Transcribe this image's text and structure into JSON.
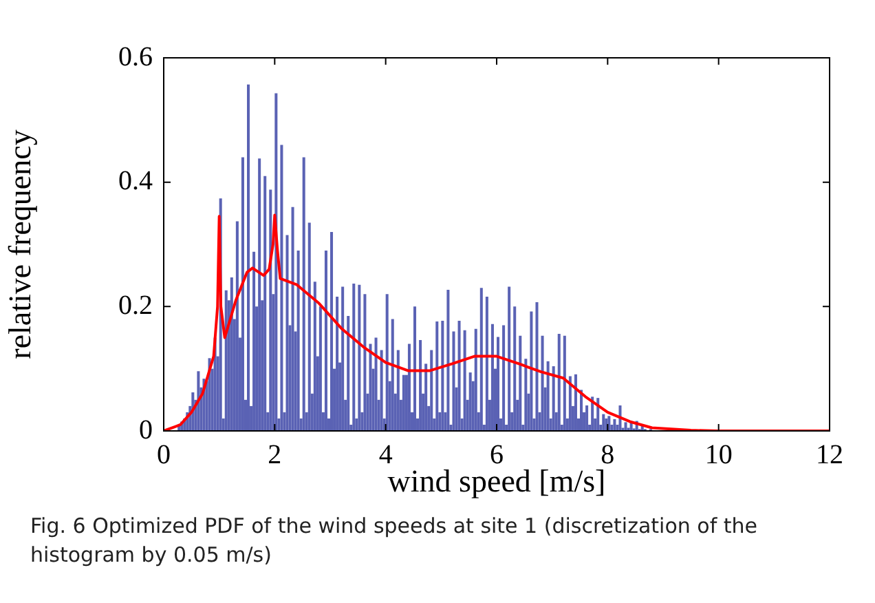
{
  "chart_data": {
    "type": "histogram",
    "xlabel": "wind speed [m/s]",
    "ylabel": "relative frequency",
    "annotations": [
      "Fig. 6  Optimized PDF of the wind speeds at site 1 (discretization of the histogram by 0.05 m/s)"
    ],
    "xlim": [
      0,
      12
    ],
    "xticks": [
      0,
      2,
      4,
      6,
      8,
      10,
      12
    ],
    "ylim": [
      0,
      0.6
    ],
    "yticks": [
      0,
      0.2,
      0.4,
      0.6
    ],
    "bins": [
      0.2,
      0.25,
      0.3,
      0.35,
      0.4,
      0.45,
      0.5,
      0.55,
      0.6,
      0.65,
      0.7,
      0.75,
      0.8,
      0.85,
      0.9,
      0.95,
      1,
      1.05,
      1.1,
      1.15,
      1.2,
      1.25,
      1.3,
      1.35,
      1.4,
      1.45,
      1.5,
      1.55,
      1.6,
      1.65,
      1.7,
      1.75,
      1.8,
      1.85,
      1.9,
      1.95,
      2,
      2.05,
      2.1,
      2.15,
      2.2,
      2.25,
      2.3,
      2.35,
      2.4,
      2.45,
      2.5,
      2.55,
      2.6,
      2.65,
      2.7,
      2.75,
      2.8,
      2.85,
      2.9,
      2.95,
      3,
      3.05,
      3.1,
      3.15,
      3.2,
      3.25,
      3.3,
      3.35,
      3.4,
      3.45,
      3.5,
      3.55,
      3.6,
      3.65,
      3.7,
      3.75,
      3.8,
      3.85,
      3.9,
      3.95,
      4,
      4.05,
      4.1,
      4.15,
      4.2,
      4.25,
      4.3,
      4.35,
      4.4,
      4.45,
      4.5,
      4.55,
      4.6,
      4.65,
      4.7,
      4.75,
      4.8,
      4.85,
      4.9,
      4.95,
      5,
      5.05,
      5.1,
      5.15,
      5.2,
      5.25,
      5.3,
      5.35,
      5.4,
      5.45,
      5.5,
      5.55,
      5.6,
      5.65,
      5.7,
      5.75,
      5.8,
      5.85,
      5.9,
      5.95,
      6,
      6.05,
      6.1,
      6.15,
      6.2,
      6.25,
      6.3,
      6.35,
      6.4,
      6.45,
      6.5,
      6.55,
      6.6,
      6.65,
      6.7,
      6.75,
      6.8,
      6.85,
      6.9,
      6.95,
      7,
      7.05,
      7.1,
      7.15,
      7.2,
      7.25,
      7.3,
      7.35,
      7.4,
      7.45,
      7.5,
      7.55,
      7.6,
      7.65,
      7.7,
      7.75,
      7.8,
      7.85,
      7.9,
      7.95,
      8,
      8.05,
      8.1,
      8.15,
      8.2,
      8.25,
      8.3,
      8.35,
      8.4,
      8.45,
      8.5,
      8.55,
      8.6,
      8.65,
      8.7,
      8.75,
      8.8
    ],
    "series": [
      {
        "color": "#5a62b4",
        "values": [
          null,
          0.01,
          0.015,
          0.02,
          0.03,
          0.04,
          0.062,
          0.05,
          0.096,
          0.07,
          0.084,
          0.08,
          0.117,
          0.1,
          0.15,
          0.12,
          0.374,
          0.02,
          0.226,
          0.21,
          0.247,
          0.18,
          0.337,
          0.15,
          0.44,
          0.05,
          0.557,
          0.04,
          0.288,
          0.2,
          0.438,
          0.21,
          0.41,
          0.03,
          0.388,
          0.22,
          0.543,
          0.02,
          0.46,
          0.03,
          0.315,
          0.17,
          0.36,
          0.16,
          0.29,
          0.02,
          0.44,
          0.03,
          0.335,
          0.06,
          0.24,
          0.12,
          0.2,
          0.03,
          0.29,
          0.02,
          0.32,
          0.1,
          0.216,
          0.11,
          0.232,
          0.05,
          0.185,
          0.01,
          0.237,
          0.02,
          0.235,
          0.03,
          0.22,
          0.06,
          0.14,
          0.1,
          0.15,
          0.05,
          0.13,
          0.02,
          0.22,
          0.08,
          0.18,
          0.06,
          0.13,
          0.05,
          0.09,
          0.09,
          0.14,
          0.03,
          0.2,
          0.02,
          0.146,
          0.06,
          0.108,
          0.04,
          0.13,
          0.02,
          0.176,
          0.03,
          0.177,
          0.03,
          0.227,
          0.01,
          0.16,
          0.07,
          0.177,
          0.02,
          0.162,
          0.05,
          0.094,
          0.08,
          0.164,
          0.03,
          0.23,
          0.01,
          0.216,
          0.05,
          0.172,
          0.1,
          0.151,
          0.02,
          0.17,
          0.01,
          0.232,
          0.03,
          0.2,
          0.05,
          0.153,
          0.01,
          0.116,
          0.06,
          0.192,
          0.02,
          0.207,
          0.03,
          0.153,
          0.07,
          0.112,
          0.02,
          0.104,
          0.03,
          0.156,
          0.01,
          0.153,
          0.02,
          0.088,
          0.04,
          0.091,
          0.02,
          0.066,
          0.03,
          0.041,
          0.01,
          0.055,
          0.02,
          0.053,
          0.01,
          0.027,
          0.02,
          0.024,
          0.01,
          0.019,
          0.01,
          0.041,
          0.005,
          0.014,
          0.005,
          0.014,
          0.004,
          0.016,
          0.003,
          0.01,
          0.003,
          null,
          0.003
        ]
      },
      {
        "type": "line",
        "color": "#ff0000",
        "x": [
          0,
          0.3,
          0.5,
          0.7,
          0.9,
          0.97,
          1,
          1.03,
          1.1,
          1.3,
          1.5,
          1.6,
          1.8,
          1.9,
          1.97,
          2,
          2.05,
          2.1,
          2.4,
          2.8,
          3.2,
          3.6,
          4,
          4.4,
          4.8,
          5.2,
          5.6,
          6,
          6.4,
          6.8,
          7.2,
          7.6,
          8,
          8.4,
          8.8,
          9.5,
          10,
          12
        ],
        "values": [
          0,
          0.01,
          0.03,
          0.06,
          0.12,
          0.2,
          0.345,
          0.2,
          0.15,
          0.21,
          0.255,
          0.262,
          0.25,
          0.26,
          0.3,
          0.347,
          0.29,
          0.245,
          0.235,
          0.205,
          0.165,
          0.135,
          0.11,
          0.097,
          0.097,
          0.108,
          0.12,
          0.12,
          0.108,
          0.095,
          0.085,
          0.055,
          0.03,
          0.015,
          0.005,
          0.001,
          0,
          0
        ]
      }
    ]
  }
}
